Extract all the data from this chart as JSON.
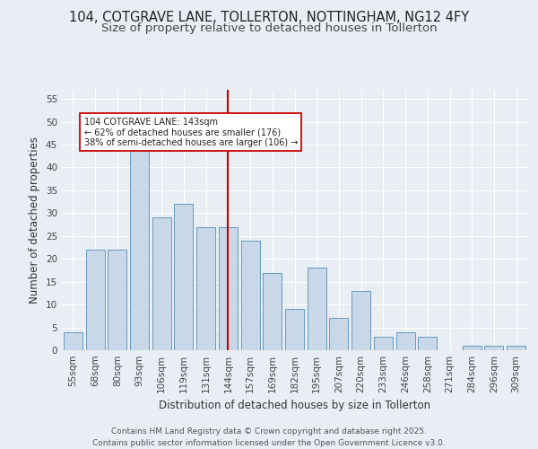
{
  "title1": "104, COTGRAVE LANE, TOLLERTON, NOTTINGHAM, NG12 4FY",
  "title2": "Size of property relative to detached houses in Tollerton",
  "xlabel": "Distribution of detached houses by size in Tollerton",
  "ylabel": "Number of detached properties",
  "categories": [
    "55sqm",
    "68sqm",
    "80sqm",
    "93sqm",
    "106sqm",
    "119sqm",
    "131sqm",
    "144sqm",
    "157sqm",
    "169sqm",
    "182sqm",
    "195sqm",
    "207sqm",
    "220sqm",
    "233sqm",
    "246sqm",
    "258sqm",
    "271sqm",
    "284sqm",
    "296sqm",
    "309sqm"
  ],
  "values": [
    4,
    22,
    22,
    44,
    29,
    32,
    27,
    27,
    24,
    17,
    9,
    18,
    7,
    13,
    3,
    4,
    3,
    0,
    1,
    1,
    1
  ],
  "bar_color": "#c8d8e8",
  "bar_edge_color": "#6699bb",
  "background_color": "#e8eef4",
  "vline_x_index": 7,
  "vline_color": "#cc0000",
  "annotation_text": "104 COTGRAVE LANE: 143sqm\n← 62% of detached houses are smaller (176)\n38% of semi-detached houses are larger (106) →",
  "annotation_box_color": "#ffffff",
  "annotation_box_edge": "#cc0000",
  "ylim": [
    0,
    57
  ],
  "yticks": [
    0,
    5,
    10,
    15,
    20,
    25,
    30,
    35,
    40,
    45,
    50,
    55
  ],
  "footer": "Contains HM Land Registry data © Crown copyright and database right 2025.\nContains public sector information licensed under the Open Government Licence v3.0.",
  "title1_fontsize": 10.5,
  "title2_fontsize": 9.5,
  "xlabel_fontsize": 8.5,
  "ylabel_fontsize": 8.5,
  "tick_fontsize": 7.5,
  "footer_fontsize": 6.5
}
